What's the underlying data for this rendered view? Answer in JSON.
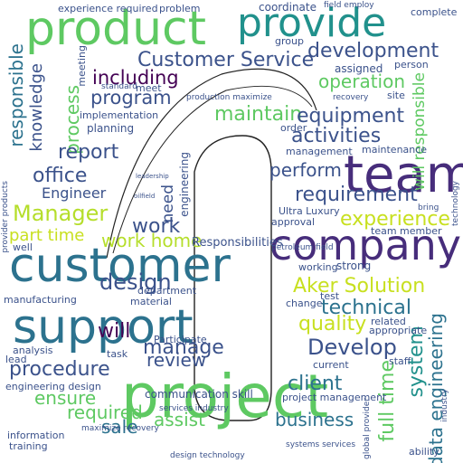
{
  "palette": {
    "green": "#5ec962",
    "lime": "#b5de2b",
    "teal": "#21918c",
    "blue": "#2c728e",
    "navy": "#3b528b",
    "purple": "#472d7b",
    "indigo": "#440154",
    "cyan": "#1fa187",
    "yellow": "#c8e020"
  },
  "shape": "lowercase-i-silhouette",
  "words": {
    "product": "product",
    "provide": "provide",
    "team": "team",
    "company": "company",
    "customer": "customer",
    "support": "support",
    "project": "project",
    "customer_service": "Customer Service",
    "development": "development",
    "including": "including",
    "operation": "operation",
    "program": "program",
    "maintain": "maintain",
    "equipment": "equipment",
    "activities": "activities",
    "responsible": "responsible",
    "knowledge": "knowledge",
    "process": "process",
    "report": "report",
    "office": "office",
    "engineer": "Engineer",
    "manager": "Manager",
    "perform": "perform",
    "requirement": "requirement",
    "experience": "experience",
    "part_time": "part time",
    "work_home": "work home",
    "work": "work",
    "design": "design",
    "aker_solution": "Aker Solution",
    "technical": "technical",
    "quality": "quality",
    "develop": "Develop",
    "will": "will",
    "manage": "manage",
    "review": "review",
    "procedure": "procedure",
    "ensure": "ensure",
    "required": "required",
    "client": "client",
    "business": "business",
    "assist": "assist",
    "sale": "sale",
    "full_time": "full time",
    "system": "system",
    "data_engineering": "data engineering",
    "responsibilities": "Responsibilities",
    "need": "need",
    "experience_required": "experience required",
    "coordinate": "coordinate",
    "problem": "problem",
    "complete": "complete",
    "meeting": "meeting",
    "engineering": "engineering",
    "implementation": "implementation",
    "planning": "planning",
    "standard": "standard",
    "meet": "meet",
    "order": "order",
    "management": "management",
    "maintenance": "maintenance",
    "site": "site",
    "person": "person",
    "assigned": "assigned",
    "group": "group",
    "will_responsible": "will responsible",
    "technology": "technology",
    "team_member": "team member",
    "approval": "approval",
    "ultra_luxury": "Ultra Luxury",
    "production_maximize": "production maximize",
    "petroleum_field": "petroleum field",
    "test": "test",
    "related": "related",
    "appropriate": "appropriate",
    "strong": "strong",
    "working": "working",
    "change": "change",
    "current": "current",
    "staff": "staff",
    "department": "department",
    "material": "material",
    "participate": "Participate",
    "task": "task",
    "analysis": "analysis",
    "manufacturing": "manufacturing",
    "lead": "lead",
    "engineering_design": "engineering design",
    "communication_skill": "communication skill",
    "project_management": "project management",
    "services_industry": "services industry",
    "information": "information",
    "training": "training",
    "design_technology": "design technology",
    "systems_services": "systems services",
    "ability": "ability",
    "global_provider": "global provider",
    "industry": "industry",
    "well": "well",
    "field_employ": "field employ",
    "recovery": "recovery",
    "maximize_recovery": "maximize recovery",
    "leadership": "leadership",
    "oilfield": "oilfield",
    "provider_products": "provider products",
    "bring": "bring"
  }
}
